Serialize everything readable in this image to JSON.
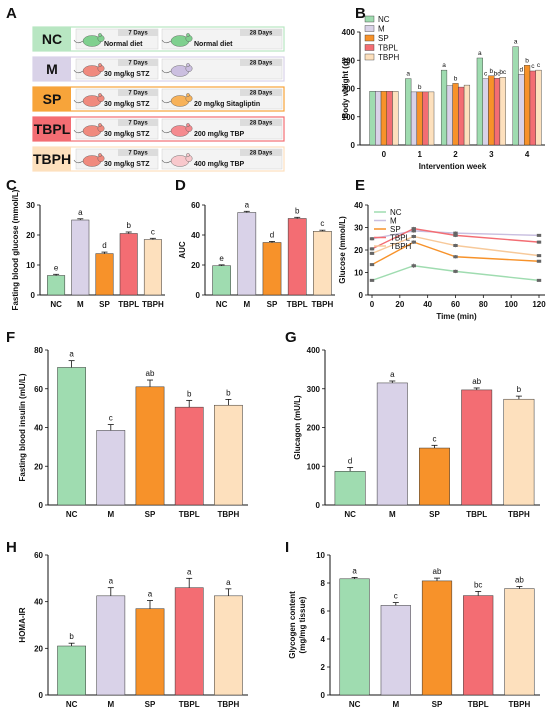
{
  "panel_labels": [
    "A",
    "B",
    "C",
    "D",
    "E",
    "F",
    "G",
    "H",
    "I"
  ],
  "colors": {
    "NC": "#9fdcb0",
    "M": "#d9d2e8",
    "SP": "#f7922a",
    "TBPL": "#f36d73",
    "TBPH": "#fde0bd"
  },
  "panel_a": {
    "groups": [
      {
        "name": "NC",
        "left_days": "7 Days",
        "left_text": "Normal diet",
        "right_days": "28 Days",
        "right_text": "Normal diet",
        "box_color": "#b8e6c2",
        "mouse_left": "#7fd08f",
        "mouse_right": "#7fd08f"
      },
      {
        "name": "M",
        "left_days": "7 Days",
        "left_text": "30 mg/kg STZ",
        "right_days": "28 Days",
        "right_text": "",
        "box_color": "#d9d2e8",
        "mouse_left": "#f08a7e",
        "mouse_right": "#cbbfe0"
      },
      {
        "name": "SP",
        "left_days": "7 Days",
        "left_text": "30 mg/kg STZ",
        "right_days": "28 Days",
        "right_text": "20 mg/kg Sitagliptin",
        "box_color": "#f7a43a",
        "mouse_left": "#f08a7e",
        "mouse_right": "#f7b25a"
      },
      {
        "name": "TBPL",
        "left_days": "7 Days",
        "left_text": "30 mg/kg STZ",
        "right_days": "28 Days",
        "right_text": "200 mg/kg  TBP",
        "box_color": "#f36d73",
        "mouse_left": "#f08a7e",
        "mouse_right": "#f58a8f"
      },
      {
        "name": "TBPH",
        "left_days": "7 Days",
        "left_text": "30 mg/kg STZ",
        "right_days": "28 Days",
        "right_text": "400 mg/kg  TBP",
        "box_color": "#fde0bd",
        "mouse_left": "#f08a7e",
        "mouse_right": "#f8c8cc"
      }
    ]
  },
  "chart_data": [
    {
      "id": "B",
      "type": "bar",
      "xlabel": "Intervention week",
      "ylabel": "Body weight (g)",
      "categories": [
        "0",
        "1",
        "2",
        "3",
        "4"
      ],
      "ylim": [
        0,
        400
      ],
      "yticks": [
        0,
        100,
        200,
        300,
        400
      ],
      "legend": [
        "NC",
        "M",
        "SP",
        "TBPL",
        "TBPH"
      ],
      "legend_position": "top-left",
      "series": [
        {
          "name": "NC",
          "values": [
            190,
            235,
            265,
            308,
            348
          ]
        },
        {
          "name": "M",
          "values": [
            190,
            188,
            210,
            235,
            250
          ]
        },
        {
          "name": "SP",
          "values": [
            190,
            188,
            218,
            245,
            282
          ]
        },
        {
          "name": "TBPL",
          "values": [
            190,
            188,
            205,
            236,
            262
          ]
        },
        {
          "name": "TBPH",
          "values": [
            190,
            188,
            212,
            240,
            265
          ]
        }
      ],
      "letters": [
        [
          "",
          "",
          "",
          "",
          ""
        ],
        [
          "a",
          "",
          "b",
          "",
          ""
        ],
        [
          "a",
          "",
          "b",
          "",
          ""
        ],
        [
          "a",
          "c",
          "b",
          "bc",
          "bc"
        ],
        [
          "a",
          "d",
          "b",
          "c",
          "c"
        ]
      ]
    },
    {
      "id": "C",
      "type": "bar",
      "xlabel": "",
      "ylabel": "Fasting blood glucose (mmol/L)",
      "categories": [
        "NC",
        "M",
        "SP",
        "TBPL",
        "TBPH"
      ],
      "ylim": [
        0,
        30
      ],
      "yticks": [
        0,
        10,
        20,
        30
      ],
      "values": [
        6.5,
        25,
        13.8,
        20.5,
        18.5
      ],
      "errors": [
        0.4,
        0.4,
        0.5,
        0.5,
        0.4
      ],
      "letters": [
        "e",
        "a",
        "d",
        "b",
        "c"
      ]
    },
    {
      "id": "D",
      "type": "bar",
      "xlabel": "",
      "ylabel": "AUC",
      "categories": [
        "NC",
        "M",
        "SP",
        "TBPL",
        "TBPH"
      ],
      "ylim": [
        0,
        60
      ],
      "yticks": [
        0,
        20,
        40,
        60
      ],
      "values": [
        19.5,
        55,
        35,
        51,
        42.5
      ],
      "errors": [
        0.6,
        0.8,
        0.7,
        0.8,
        0.7
      ],
      "letters": [
        "e",
        "a",
        "d",
        "b",
        "c"
      ]
    },
    {
      "id": "E",
      "type": "line",
      "xlabel": "Time (min)",
      "ylabel": "Glucose (mmol/L)",
      "x": [
        0,
        30,
        60,
        120
      ],
      "xticks": [
        0,
        20,
        40,
        60,
        80,
        100,
        120
      ],
      "ylim": [
        0,
        40
      ],
      "yticks": [
        0,
        10,
        20,
        30,
        40
      ],
      "legend": [
        "NC",
        "M",
        "SP",
        "TBPL",
        "TBPH"
      ],
      "legend_position": "top-left",
      "series": [
        {
          "name": "NC",
          "values": [
            6.5,
            13,
            10.5,
            6.5
          ],
          "errors": [
            0.5,
            1,
            0.8,
            0.4
          ]
        },
        {
          "name": "M",
          "values": [
            25,
            28.5,
            27.5,
            26.5
          ],
          "errors": [
            0.8,
            0.8,
            0.8,
            0.6
          ]
        },
        {
          "name": "SP",
          "values": [
            13.5,
            23.5,
            17,
            15
          ],
          "errors": [
            0.6,
            0.8,
            0.8,
            0.6
          ]
        },
        {
          "name": "TBPL",
          "values": [
            20.5,
            29.5,
            26.5,
            23.5
          ],
          "errors": [
            0.8,
            0.8,
            0.8,
            0.7
          ]
        },
        {
          "name": "TBPH",
          "values": [
            18.5,
            26,
            22,
            17.5
          ],
          "errors": [
            0.7,
            0.8,
            0.8,
            0.6
          ]
        }
      ]
    },
    {
      "id": "F",
      "type": "bar",
      "xlabel": "",
      "ylabel": "Fasting blood insulin (mU/L)",
      "categories": [
        "NC",
        "M",
        "SP",
        "TBPL",
        "TBPH"
      ],
      "ylim": [
        0,
        80
      ],
      "yticks": [
        0,
        20,
        40,
        60,
        80
      ],
      "values": [
        71,
        38.5,
        61,
        50.5,
        51.5
      ],
      "errors": [
        3.5,
        3,
        3.5,
        3.5,
        3
      ],
      "letters": [
        "a",
        "c",
        "ab",
        "b",
        "b"
      ]
    },
    {
      "id": "G",
      "type": "bar",
      "xlabel": "",
      "ylabel": "Glucagon (mU/L)",
      "categories": [
        "NC",
        "M",
        "SP",
        "TBPL",
        "TBPH"
      ],
      "ylim": [
        0,
        400
      ],
      "yticks": [
        0,
        100,
        200,
        300,
        400
      ],
      "values": [
        87,
        315,
        147,
        297,
        273
      ],
      "errors": [
        10,
        5,
        7,
        5,
        8
      ],
      "letters": [
        "d",
        "a",
        "c",
        "ab",
        "b"
      ]
    },
    {
      "id": "H",
      "type": "bar",
      "xlabel": "",
      "ylabel": "HOMA-IR",
      "categories": [
        "NC",
        "M",
        "SP",
        "TBPL",
        "TBPH"
      ],
      "ylim": [
        0,
        60
      ],
      "yticks": [
        0,
        20,
        40,
        60
      ],
      "values": [
        21,
        42.5,
        37,
        46,
        42.5
      ],
      "errors": [
        1.2,
        3.5,
        3.5,
        4,
        3
      ],
      "letters": [
        "b",
        "a",
        "a",
        "a",
        "a"
      ]
    },
    {
      "id": "I",
      "type": "bar",
      "xlabel": "",
      "ylabel": "Glycogen content (mg/mg tissue)",
      "categories": [
        "NC",
        "M",
        "SP",
        "TBPL",
        "TBPH"
      ],
      "ylim": [
        0,
        10
      ],
      "yticks": [
        0,
        2,
        4,
        6,
        8,
        10
      ],
      "values": [
        8.3,
        6.4,
        8.15,
        7.1,
        7.6
      ],
      "errors": [
        0.1,
        0.2,
        0.2,
        0.3,
        0.15
      ],
      "letters": [
        "a",
        "c",
        "ab",
        "bc",
        "ab"
      ]
    }
  ]
}
